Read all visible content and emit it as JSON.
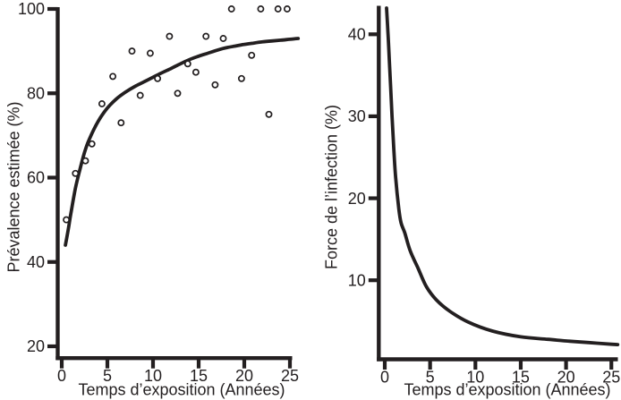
{
  "figure": {
    "background": "#ffffff",
    "ink": "#231f20"
  },
  "chart_data": [
    {
      "id": "estimated-prevalence",
      "type": "scatter",
      "xlabel": "Temps d’exposition (Années)",
      "ylabel": "Prévalence estimée (%)",
      "x_ticks": [
        0,
        5,
        10,
        15,
        20,
        25
      ],
      "y_ticks": [
        20,
        40,
        60,
        80,
        100
      ],
      "xlim": [
        -0.6,
        25.9
      ],
      "ylim": [
        16.8,
        100.4
      ],
      "grid": false,
      "marker": "open-circle",
      "scatter_points": [
        [
          0.5,
          50
        ],
        [
          1.5,
          61
        ],
        [
          2.6,
          64
        ],
        [
          3.3,
          68
        ],
        [
          4.4,
          77.5
        ],
        [
          5.6,
          84
        ],
        [
          6.5,
          73
        ],
        [
          7.7,
          90
        ],
        [
          8.6,
          79.5
        ],
        [
          9.7,
          89.5
        ],
        [
          10.5,
          83.5
        ],
        [
          11.8,
          93.5
        ],
        [
          12.7,
          80
        ],
        [
          13.8,
          87
        ],
        [
          14.7,
          85
        ],
        [
          15.8,
          93.5
        ],
        [
          16.8,
          82
        ],
        [
          17.7,
          93
        ],
        [
          18.6,
          100
        ],
        [
          19.7,
          83.5
        ],
        [
          20.8,
          89
        ],
        [
          21.8,
          100
        ],
        [
          22.7,
          75
        ],
        [
          23.7,
          100
        ],
        [
          24.7,
          100
        ]
      ],
      "fit_curve": [
        [
          0.4,
          44
        ],
        [
          0.7,
          47.5
        ],
        [
          1,
          51.5
        ],
        [
          1.5,
          57.5
        ],
        [
          2,
          62
        ],
        [
          2.5,
          66
        ],
        [
          3,
          69
        ],
        [
          4,
          73.4
        ],
        [
          5,
          76.5
        ],
        [
          6,
          78.7
        ],
        [
          7,
          80.3
        ],
        [
          8,
          81.6
        ],
        [
          9,
          82.7
        ],
        [
          10,
          83.8
        ],
        [
          11,
          84.9
        ],
        [
          12,
          85.9
        ],
        [
          13,
          87
        ],
        [
          14,
          88
        ],
        [
          15,
          88.8
        ],
        [
          16,
          89.5
        ],
        [
          17,
          90.2
        ],
        [
          18,
          90.8
        ],
        [
          19,
          91.2
        ],
        [
          20,
          91.6
        ],
        [
          21,
          91.9
        ],
        [
          22,
          92.2
        ],
        [
          23,
          92.4
        ],
        [
          24,
          92.6
        ],
        [
          25,
          92.8
        ],
        [
          25.9,
          93
        ]
      ]
    },
    {
      "id": "force-of-infection",
      "type": "line",
      "xlabel": "Temps d’exposition (Années)",
      "ylabel": "Force de l’infection (%)",
      "x_ticks": [
        0,
        5,
        10,
        15,
        20,
        25
      ],
      "y_ticks": [
        10,
        20,
        30,
        40
      ],
      "xlim": [
        -0.7,
        25.8
      ],
      "ylim": [
        -0.3,
        43.5
      ],
      "grid": false,
      "curve": [
        [
          0.2,
          43.2
        ],
        [
          0.35,
          40.3
        ],
        [
          0.5,
          36.8
        ],
        [
          0.65,
          33.5
        ],
        [
          0.8,
          30
        ],
        [
          1,
          26
        ],
        [
          1.2,
          22.5
        ],
        [
          1.55,
          18.7
        ],
        [
          1.8,
          17
        ],
        [
          2.2,
          15.8
        ],
        [
          2.8,
          13.6
        ],
        [
          3.7,
          11.4
        ],
        [
          4.6,
          9.2
        ],
        [
          5.7,
          7.6
        ],
        [
          7.2,
          6.2
        ],
        [
          9.2,
          4.9
        ],
        [
          11.9,
          3.8
        ],
        [
          15,
          3.1
        ],
        [
          18,
          2.8
        ],
        [
          20,
          2.6
        ],
        [
          22.5,
          2.4
        ],
        [
          25,
          2.2
        ],
        [
          25.7,
          2.15
        ]
      ]
    }
  ]
}
